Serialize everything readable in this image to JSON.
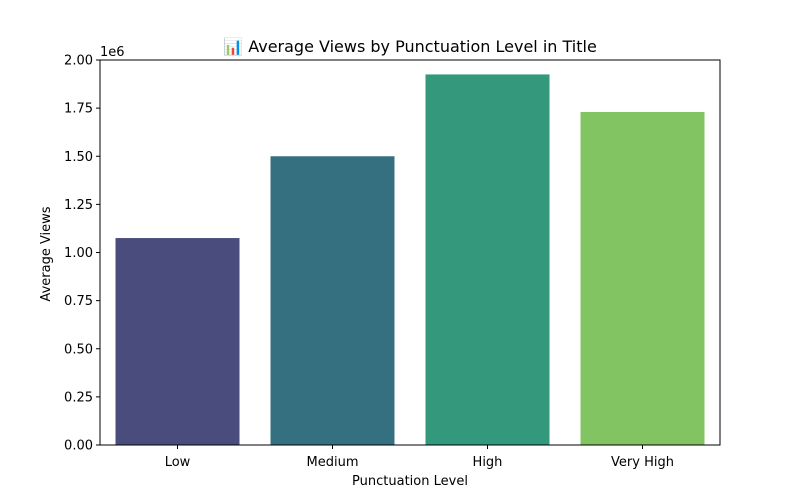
{
  "chart_data": {
    "type": "bar",
    "title": "📊 Average Views by Punctuation Level in Title",
    "xlabel": "Punctuation Level",
    "ylabel": "Average Views",
    "y_offset_label": "1e6",
    "categories": [
      "Low",
      "Medium",
      "High",
      "Very High"
    ],
    "values": [
      1075000,
      1500000,
      1925000,
      1730000
    ],
    "ylim": [
      0,
      2000000
    ],
    "yticks": [
      0,
      250000,
      500000,
      750000,
      1000000,
      1250000,
      1500000,
      1750000,
      2000000
    ],
    "ytick_labels": [
      "0.00",
      "0.25",
      "0.50",
      "0.75",
      "1.00",
      "1.25",
      "1.50",
      "1.75",
      "2.00"
    ],
    "colors": [
      "#4a4c7e",
      "#357080",
      "#33987c",
      "#82c461"
    ],
    "grid": false,
    "legend": "none"
  }
}
